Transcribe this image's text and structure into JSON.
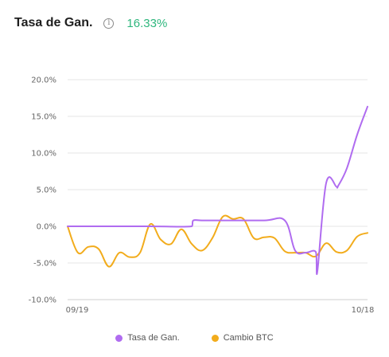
{
  "header": {
    "title": "Tasa de Gan.",
    "info_icon": "info-icon",
    "value": "16.33%"
  },
  "colors": {
    "win_rate": "#b06cf0",
    "btc_change": "#f2ac1c",
    "value_positive": "#2eb67d",
    "gridline": "#e6e6e6"
  },
  "chart_data": {
    "type": "line",
    "title": "",
    "xlabel": "",
    "ylabel": "",
    "ylim": [
      -10,
      20
    ],
    "yticks": [
      20,
      15,
      10,
      5,
      0,
      -5,
      -10
    ],
    "ytick_labels": [
      "20.0%",
      "15.0%",
      "10.0%",
      "5.0%",
      "0.0%",
      "-5.0%",
      "-10.0%"
    ],
    "xlim": [
      "2023-09-19",
      "2023-10-18"
    ],
    "xtick_labels": [
      "09/19",
      "10/18"
    ],
    "grid": true,
    "legend_position": "bottom",
    "series": [
      {
        "name": "Tasa de Gan.",
        "color": "#b06cf0",
        "x": [
          "2023-09-19",
          "2023-09-23",
          "2023-09-27",
          "2023-10-01",
          "2023-10-01",
          "2023-10-02",
          "2023-10-04",
          "2023-10-08",
          "2023-10-10",
          "2023-10-11",
          "2023-10-12",
          "2023-10-13",
          "2023-10-13",
          "2023-10-14",
          "2023-10-15",
          "2023-10-15",
          "2023-10-16",
          "2023-10-17",
          "2023-10-18"
        ],
        "values": [
          0,
          0,
          0,
          0,
          0.8,
          0.8,
          0.8,
          0.8,
          0.8,
          -3.3,
          -3.6,
          -3.5,
          -6.1,
          5.9,
          5.4,
          5.5,
          7.9,
          12.5,
          16.33
        ]
      },
      {
        "name": "Cambio BTC",
        "color": "#f2ac1c",
        "x": [
          "2023-09-19",
          "2023-09-20",
          "2023-09-21",
          "2023-09-22",
          "2023-09-23",
          "2023-09-24",
          "2023-09-25",
          "2023-09-26",
          "2023-09-27",
          "2023-09-28",
          "2023-09-29",
          "2023-09-30",
          "2023-10-01",
          "2023-10-02",
          "2023-10-03",
          "2023-10-04",
          "2023-10-05",
          "2023-10-06",
          "2023-10-07",
          "2023-10-08",
          "2023-10-09",
          "2023-10-10",
          "2023-10-11",
          "2023-10-12",
          "2023-10-13",
          "2023-10-14",
          "2023-10-15",
          "2023-10-16",
          "2023-10-17",
          "2023-10-18"
        ],
        "values": [
          0,
          -3.6,
          -2.8,
          -3.1,
          -5.5,
          -3.6,
          -4.2,
          -3.6,
          0.3,
          -1.8,
          -2.4,
          -0.4,
          -2.4,
          -3.3,
          -1.6,
          1.3,
          1.0,
          1.0,
          -1.6,
          -1.5,
          -1.6,
          -3.4,
          -3.6,
          -3.6,
          -4.1,
          -2.3,
          -3.5,
          -3.3,
          -1.4,
          -0.9
        ]
      }
    ]
  }
}
